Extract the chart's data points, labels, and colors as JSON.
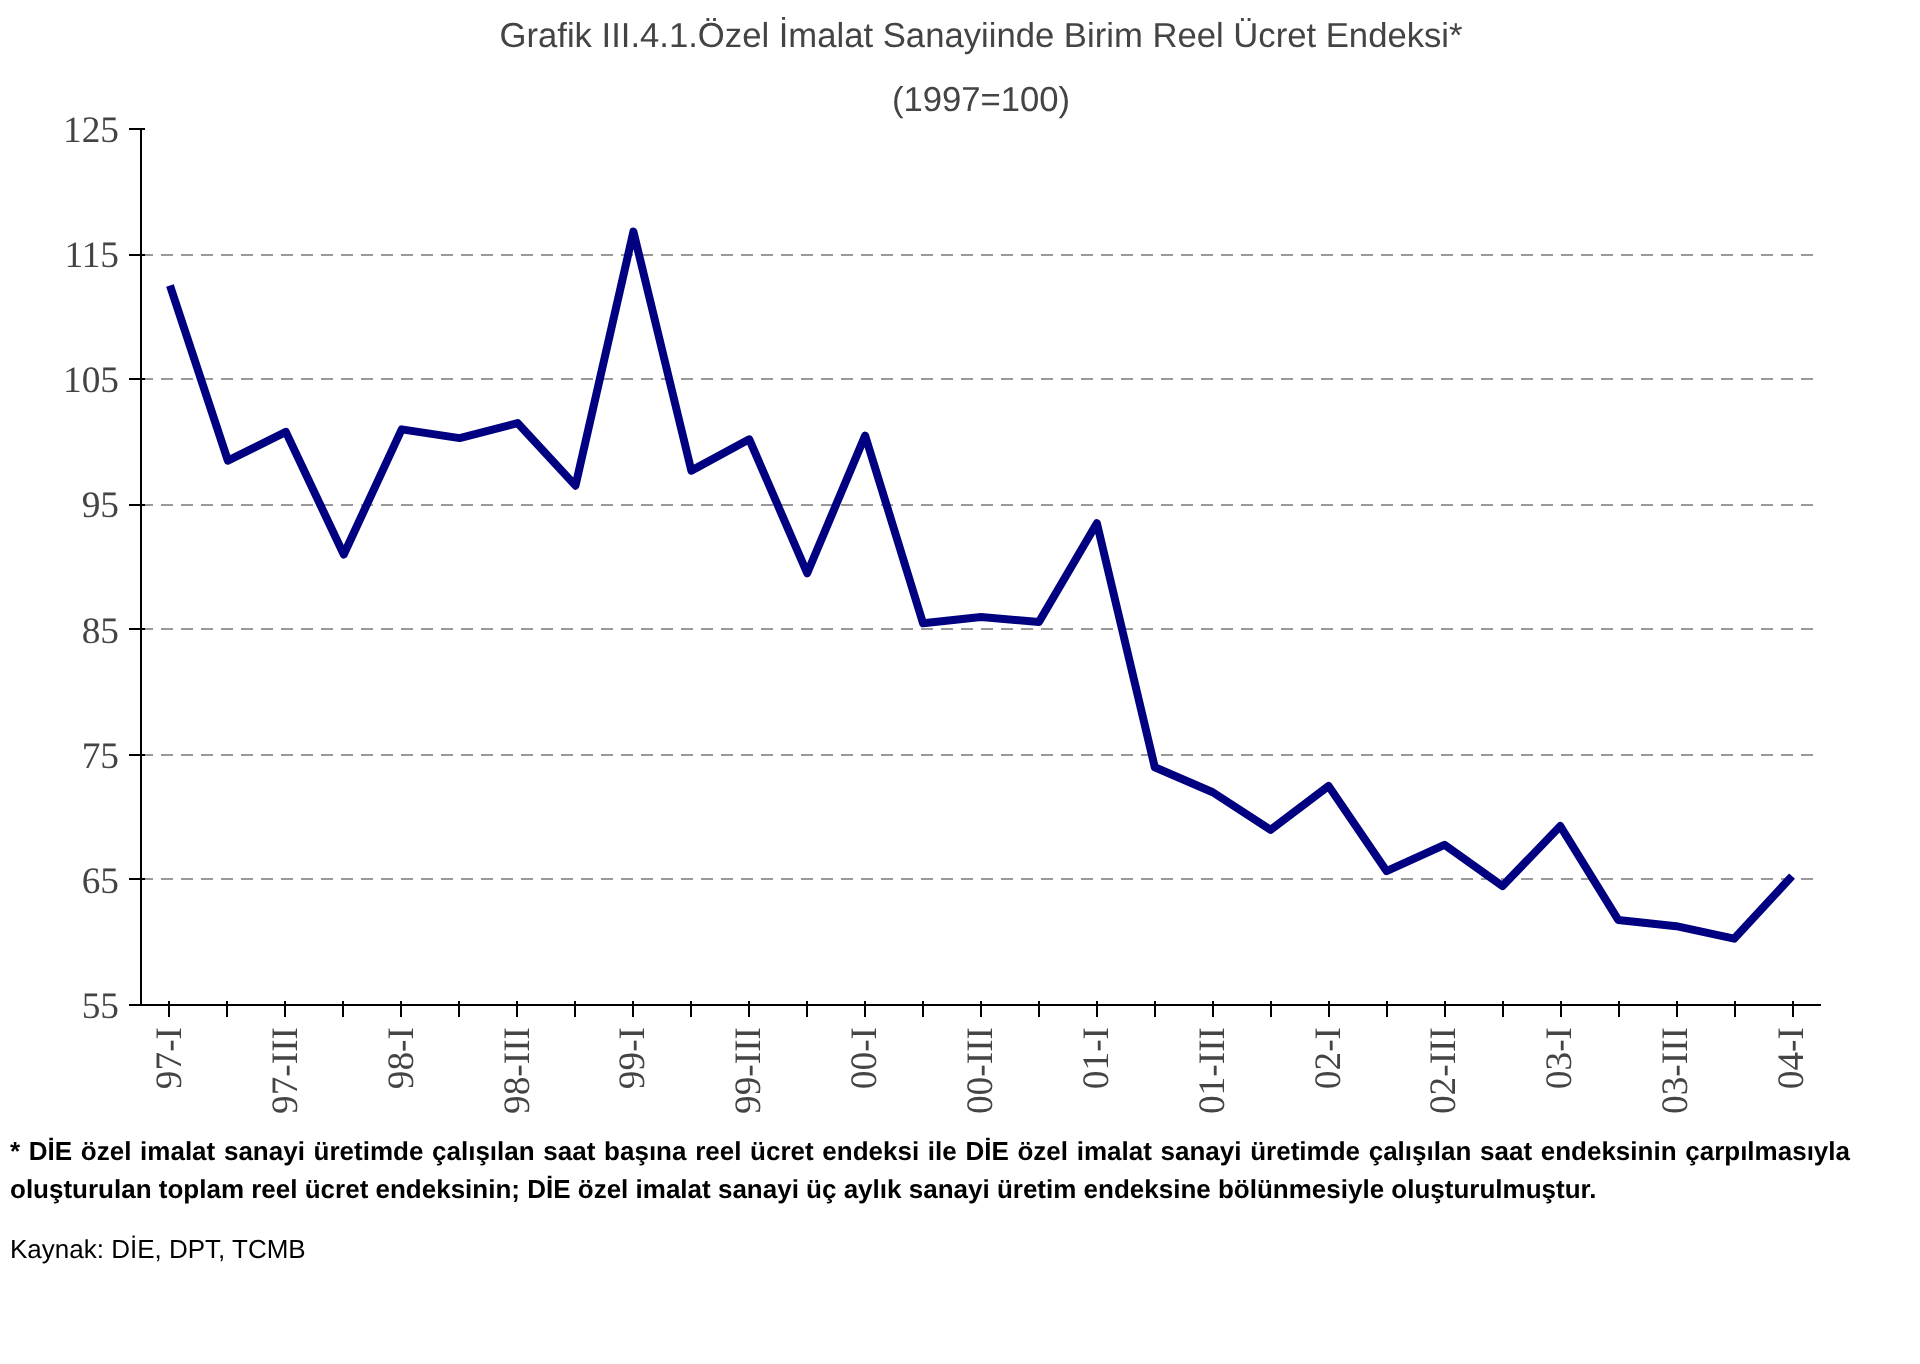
{
  "chart_data": {
    "type": "line",
    "title": "Grafik III.4.1.Özel İmalat Sanayiinde Birim Reel Ücret Endeksi*",
    "subtitle": "(1997=100)",
    "categories": [
      "97-I",
      null,
      "97-III",
      null,
      "98-I",
      null,
      "98-III",
      null,
      "99-I",
      null,
      "99-III",
      null,
      "00-I",
      null,
      "00-III",
      null,
      "01-I",
      null,
      "01-III",
      null,
      "02-I",
      null,
      "02-III",
      null,
      "03-I",
      null,
      "03-III",
      null,
      "04-I"
    ],
    "series": [
      {
        "color": "#000080",
        "values": [
          112.5,
          98.5,
          100.8,
          91,
          101,
          100.3,
          101.5,
          96.5,
          116.8,
          97.7,
          100.2,
          89.5,
          100.5,
          85.5,
          86,
          85.6,
          93.5,
          74,
          72,
          69,
          72.5,
          65.7,
          67.8,
          64.5,
          69.3,
          61.8,
          61.3,
          60.3,
          65.3
        ]
      }
    ],
    "ylim": [
      55,
      125
    ],
    "yticks": [
      55,
      65,
      75,
      85,
      95,
      105,
      115,
      125
    ],
    "grid": "y",
    "marker": "none",
    "line_style": "solid",
    "annotations": [
      "* DİE özel imalat sanayi üretimde çalışılan saat başına reel ücret endeksi ile DİE özel imalat sanayi üretimde çalışılan saat endeksinin çarpılmasıyla oluşturulan toplam reel ücret endeksinin; DİE özel imalat sanayi üç aylık sanayi üretim endeksine bölünmesiyle oluşturulmuştur.",
      "Kaynak: DİE, DPT, TCMB"
    ]
  }
}
